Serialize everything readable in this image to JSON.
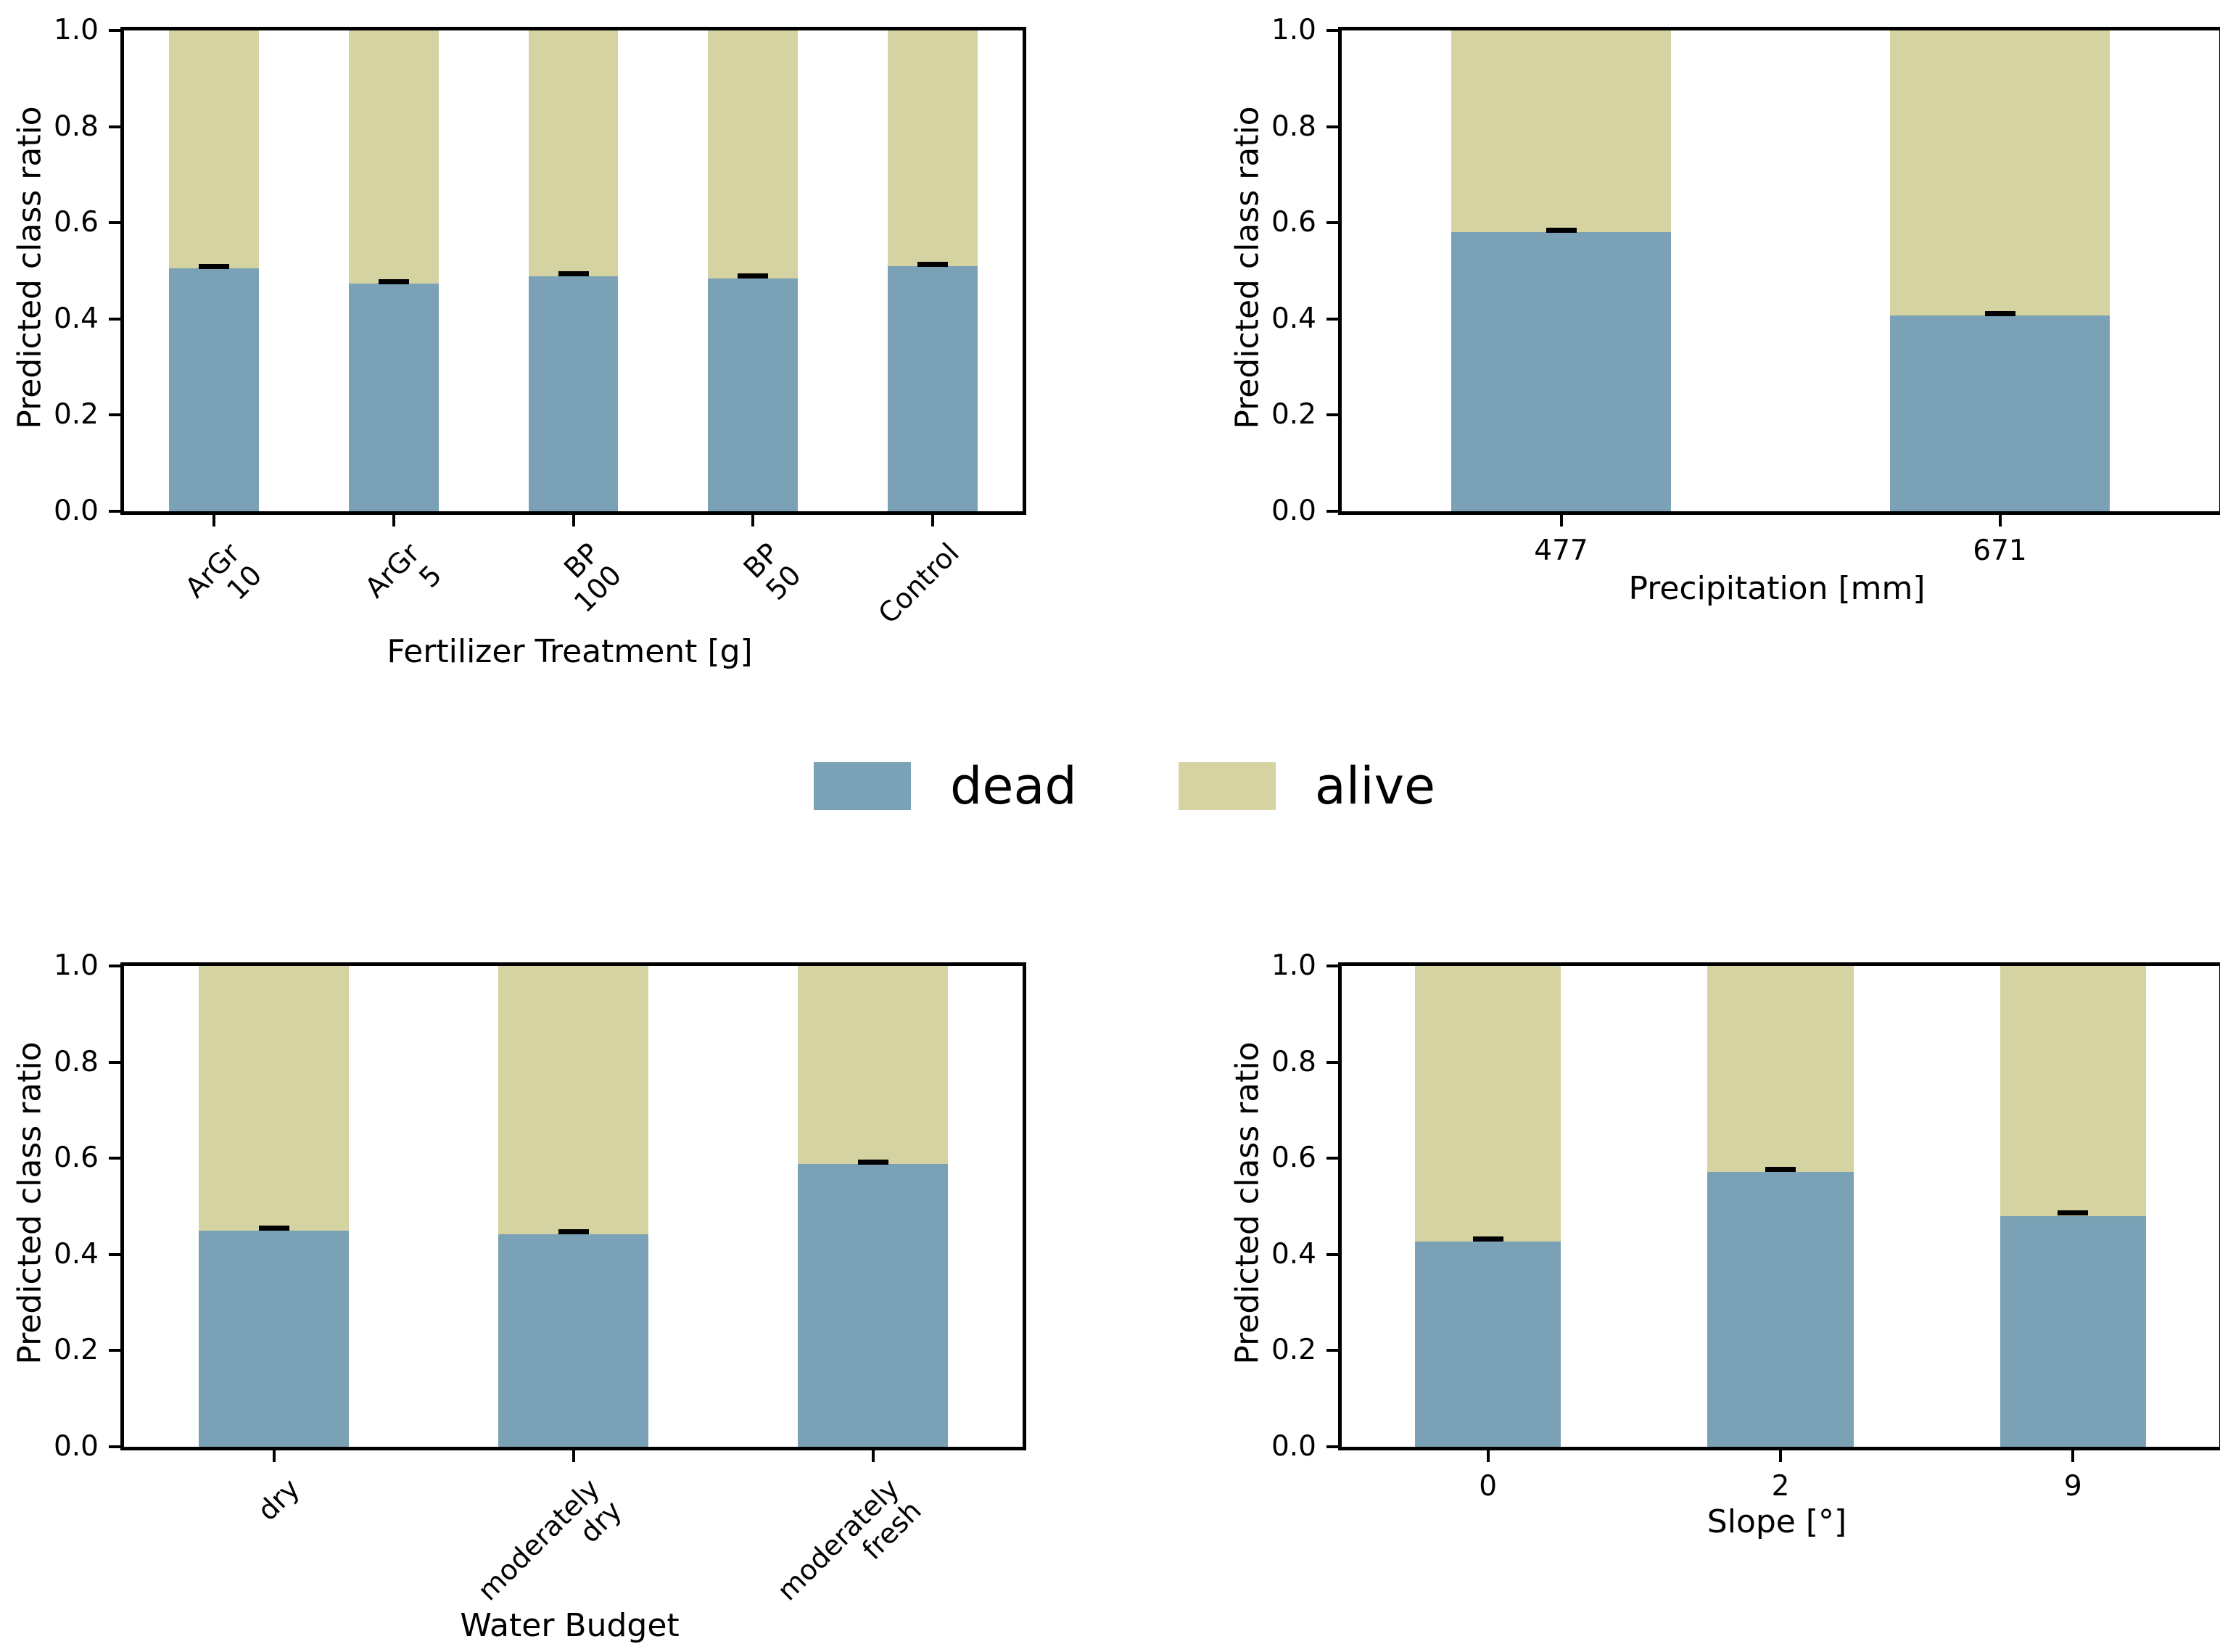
{
  "colors": {
    "dead": "#7aa1b5",
    "alive": "#d5d3a2",
    "axis": "#000000"
  },
  "ylabel": "Predicted class ratio",
  "yticks": [
    "0.0",
    "0.2",
    "0.4",
    "0.6",
    "0.8",
    "1.0"
  ],
  "legend": {
    "items": [
      {
        "label": "dead",
        "color": "#7aa1b5"
      },
      {
        "label": "alive",
        "color": "#d5d3a2"
      }
    ]
  },
  "chart_data": [
    {
      "type": "bar",
      "stacked": true,
      "position": "top-left",
      "xlabel": "Fertilizer Treatment [g]",
      "ylabel": "Predicted class ratio",
      "ylim": [
        0.0,
        1.0
      ],
      "grid": false,
      "xtick_rotation": 45,
      "categories": [
        "ArGr\n10",
        "ArGr\n5",
        "BP\n100",
        "BP\n50",
        "Control"
      ],
      "series": [
        {
          "name": "dead",
          "values": [
            0.505,
            0.474,
            0.489,
            0.484,
            0.51
          ]
        },
        {
          "name": "alive",
          "values": [
            0.495,
            0.526,
            0.511,
            0.516,
            0.49
          ]
        }
      ],
      "errors": [
        0.004,
        0.003,
        0.004,
        0.004,
        0.003
      ]
    },
    {
      "type": "bar",
      "stacked": true,
      "position": "top-right",
      "xlabel": "Precipitation [mm]",
      "ylabel": "Predicted class ratio",
      "ylim": [
        0.0,
        1.0
      ],
      "grid": false,
      "xtick_rotation": 0,
      "categories": [
        "477",
        "671"
      ],
      "series": [
        {
          "name": "dead",
          "values": [
            0.58,
            0.407
          ]
        },
        {
          "name": "alive",
          "values": [
            0.42,
            0.593
          ]
        }
      ],
      "errors": [
        0.004,
        0.004
      ]
    },
    {
      "type": "bar",
      "stacked": true,
      "position": "bottom-left",
      "xlabel": "Water Budget",
      "ylabel": "Predicted class ratio",
      "ylim": [
        0.0,
        1.0
      ],
      "grid": false,
      "xtick_rotation": 45,
      "categories": [
        "dry",
        "moderately\ndry",
        "moderately\nfresh"
      ],
      "series": [
        {
          "name": "dead",
          "values": [
            0.449,
            0.442,
            0.588
          ]
        },
        {
          "name": "alive",
          "values": [
            0.551,
            0.558,
            0.412
          ]
        }
      ],
      "errors": [
        0.005,
        0.004,
        0.004
      ]
    },
    {
      "type": "bar",
      "stacked": true,
      "position": "bottom-right",
      "xlabel": "Slope [°]",
      "ylabel": "Predicted class ratio",
      "ylim": [
        0.0,
        1.0
      ],
      "grid": false,
      "xtick_rotation": 0,
      "categories": [
        "0",
        "2",
        "9"
      ],
      "series": [
        {
          "name": "dead",
          "values": [
            0.427,
            0.572,
            0.48
          ]
        },
        {
          "name": "alive",
          "values": [
            0.573,
            0.428,
            0.52
          ]
        }
      ],
      "errors": [
        0.004,
        0.004,
        0.005
      ]
    }
  ]
}
